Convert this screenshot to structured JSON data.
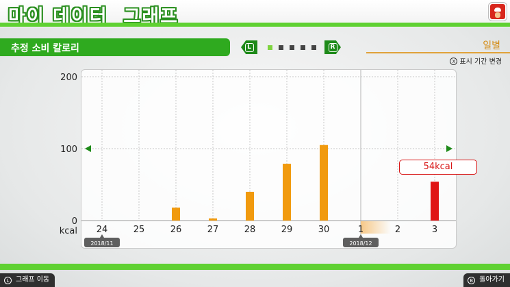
{
  "header": {
    "title": "마이 데이터  그래프",
    "avatar_icon": "mario-avatar-icon"
  },
  "section": {
    "title": "추정 소비 칼로리"
  },
  "pager": {
    "left_label": "L",
    "right_label": "R",
    "pages": 5,
    "active_page": 1
  },
  "period": {
    "label": "일별",
    "hint_button": "X",
    "hint_text": "표시 기간 변경"
  },
  "tooltip": {
    "text": "54kcal"
  },
  "chart_data": {
    "type": "bar",
    "categories": [
      "24",
      "25",
      "26",
      "27",
      "28",
      "29",
      "30",
      "1",
      "2",
      "3"
    ],
    "values": [
      0,
      0,
      18,
      3,
      40,
      79,
      105,
      0,
      0,
      54
    ],
    "highlight_index": 9,
    "y_unit_label": "kcal",
    "y_ticks": [
      "200",
      "100",
      "0"
    ],
    "ylim": [
      0,
      200
    ],
    "month_markers": [
      {
        "category_index": 0,
        "label": "2018/11"
      },
      {
        "category_index": 7,
        "label": "2018/12"
      }
    ],
    "colors": {
      "bar": "#f19a0e",
      "highlight": "#e01414",
      "arrow": "#1e8a19"
    },
    "grid": true
  },
  "footer": {
    "left": {
      "button": "L",
      "label": "그래프 이동"
    },
    "right": {
      "button": "B",
      "label": "돌아가기"
    }
  }
}
